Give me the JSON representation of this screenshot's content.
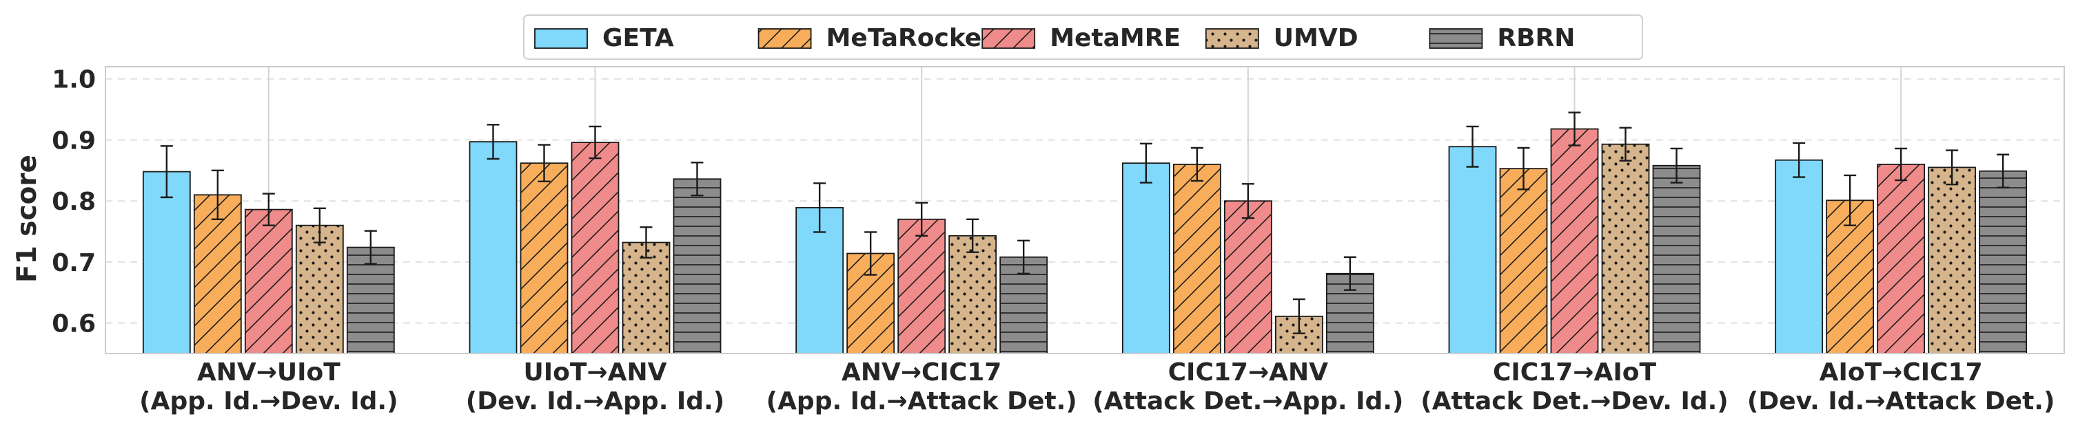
{
  "chart_data": {
    "type": "bar",
    "ylabel": "F1 score",
    "ylim": [
      0.55,
      1.02
    ],
    "yticks": [
      "0.6",
      "0.7",
      "0.8",
      "0.9",
      "1.0"
    ],
    "grid": "horizontal dashed",
    "legend_placement": "top-center",
    "categories": [
      {
        "line1": "ANV→UIoT",
        "line2": "(App. Id.→Dev. Id.)"
      },
      {
        "line1": "UIoT→ANV",
        "line2": "(Dev. Id.→App. Id.)"
      },
      {
        "line1": "ANV→CIC17",
        "line2": "(App. Id.→Attack Det.)"
      },
      {
        "line1": "CIC17→ANV",
        "line2": "(Attack Det.→App. Id.)"
      },
      {
        "line1": "CIC17→AIoT",
        "line2": "(Attack Det.→Dev. Id.)"
      },
      {
        "line1": "AIoT→CIC17",
        "line2": "(Dev. Id.→Attack Det.)"
      }
    ],
    "series": [
      {
        "name": "GETA",
        "color": "#80d8fb",
        "pattern": "none",
        "values": [
          0.848,
          0.897,
          0.789,
          0.862,
          0.889,
          0.867
        ],
        "errors": [
          0.042,
          0.028,
          0.04,
          0.032,
          0.033,
          0.028
        ]
      },
      {
        "name": "MeTaRocket",
        "color": "#f8ad5b",
        "pattern": "diagonal",
        "values": [
          0.81,
          0.862,
          0.714,
          0.86,
          0.853,
          0.801
        ],
        "errors": [
          0.04,
          0.03,
          0.035,
          0.027,
          0.034,
          0.041
        ]
      },
      {
        "name": "MetaMRE",
        "color": "#ef8b8a",
        "pattern": "diagonal",
        "values": [
          0.786,
          0.896,
          0.77,
          0.8,
          0.918,
          0.86
        ],
        "errors": [
          0.026,
          0.026,
          0.027,
          0.028,
          0.027,
          0.026
        ]
      },
      {
        "name": "UMVD",
        "color": "#d6b48c",
        "pattern": "dots",
        "values": [
          0.76,
          0.732,
          0.743,
          0.611,
          0.893,
          0.855
        ],
        "errors": [
          0.028,
          0.025,
          0.027,
          0.028,
          0.027,
          0.028
        ]
      },
      {
        "name": "RBRN",
        "color": "#8c8c8c",
        "pattern": "horizontal",
        "values": [
          0.724,
          0.836,
          0.708,
          0.681,
          0.858,
          0.849
        ],
        "errors": [
          0.027,
          0.027,
          0.027,
          0.027,
          0.028,
          0.027
        ]
      }
    ]
  }
}
